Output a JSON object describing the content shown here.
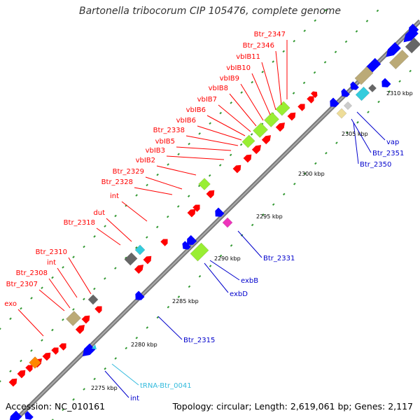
{
  "title": "Bartonella tribocorum CIP 105476, complete genome",
  "footer": {
    "accession": "Accession: NC_010161",
    "summary": "Topology: circular; Length: 2,619,061 bp; Genes: 2,117"
  },
  "scale": {
    "ticks": [
      {
        "label": "2275 kbp"
      },
      {
        "label": "2280 kbp"
      },
      {
        "label": "2285 kbp"
      },
      {
        "label": "2290 kbp"
      },
      {
        "label": "2295 kbp"
      },
      {
        "label": "2300 kbp"
      },
      {
        "label": "2305 kbp"
      },
      {
        "label": "2310 kbp"
      }
    ]
  },
  "colors": {
    "backbone": "#7a7a7a",
    "feature_label_red": "#ff0000",
    "feature_label_blue": "#0000cc",
    "feature_label_cyan": "#33bbdd",
    "tick_green": "#339933",
    "cds_red": "#ff0000",
    "cds_blue": "#0000ff",
    "cds_green": "#99ee33",
    "cds_grey": "#666666",
    "cds_khaki": "#bbaa77",
    "cds_cyan": "#33ccdd",
    "cds_magenta": "#ee33bb",
    "cds_orange": "#ff8800",
    "cds_lightgrey": "#cccccc"
  },
  "labels_upper": [
    {
      "text": "Btr_2347"
    },
    {
      "text": "Btr_2346"
    },
    {
      "text": "vbIB11"
    },
    {
      "text": "vbIB10"
    },
    {
      "text": "vbIB9"
    },
    {
      "text": "vbIB8"
    },
    {
      "text": "vbIB7"
    },
    {
      "text": "vbIB6"
    },
    {
      "text": "vbIB6"
    },
    {
      "text": "Btr_2338"
    },
    {
      "text": "vbIB5"
    },
    {
      "text": "vbIB3"
    },
    {
      "text": "vbIB2"
    },
    {
      "text": "Btr_2329"
    },
    {
      "text": "Btr_2328"
    },
    {
      "text": "int"
    },
    {
      "text": "dut"
    },
    {
      "text": "Btr_2318"
    },
    {
      "text": "Btr_2310"
    },
    {
      "text": "int"
    },
    {
      "text": "Btr_2308"
    },
    {
      "text": "Btr_2307"
    },
    {
      "text": "exo"
    }
  ],
  "labels_lower": [
    {
      "text": "vap"
    },
    {
      "text": "Btr_2351"
    },
    {
      "text": "Btr_2350"
    },
    {
      "text": "Btr_2331"
    },
    {
      "text": "exbB"
    },
    {
      "text": "exbD"
    },
    {
      "text": "Btr_2315"
    },
    {
      "text": "tRNA-Btr_0041"
    },
    {
      "text": "int"
    }
  ]
}
